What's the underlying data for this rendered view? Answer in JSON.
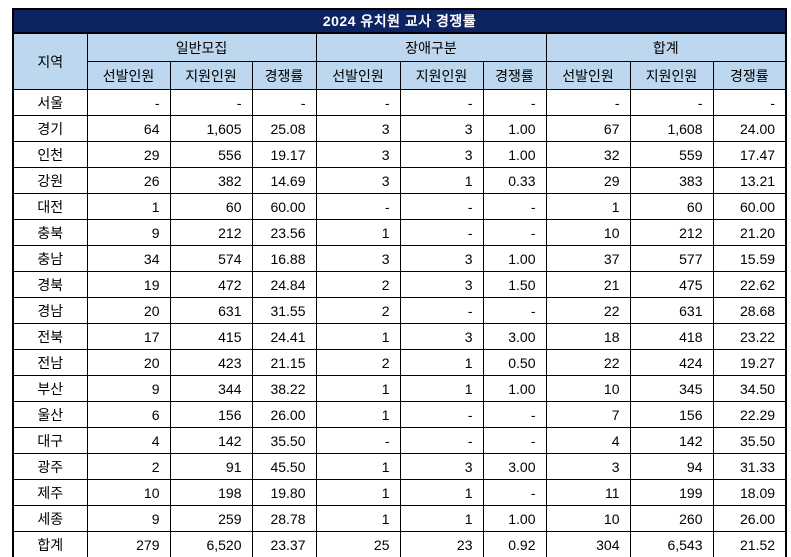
{
  "title": "2024 유치원 교사 경쟁률",
  "colors": {
    "title_bg": "#0e2361",
    "title_fg": "#ffffff",
    "header_bg": "#bdd7ee",
    "border": "#000000"
  },
  "chart_data": {
    "type": "table",
    "title": "2024 유치원 교사 경쟁률",
    "region_header": "지역",
    "column_groups": [
      {
        "label": "일반모집"
      },
      {
        "label": "장애구분"
      },
      {
        "label": "합계"
      }
    ],
    "sub_columns": [
      "선발인원",
      "지원인원",
      "경쟁률"
    ],
    "rows": [
      {
        "region": "서울",
        "values": [
          "-",
          "-",
          "-",
          "-",
          "-",
          "-",
          "-",
          "-",
          "-"
        ]
      },
      {
        "region": "경기",
        "values": [
          "64",
          "1,605",
          "25.08",
          "3",
          "3",
          "1.00",
          "67",
          "1,608",
          "24.00"
        ]
      },
      {
        "region": "인천",
        "values": [
          "29",
          "556",
          "19.17",
          "3",
          "3",
          "1.00",
          "32",
          "559",
          "17.47"
        ]
      },
      {
        "region": "강원",
        "values": [
          "26",
          "382",
          "14.69",
          "3",
          "1",
          "0.33",
          "29",
          "383",
          "13.21"
        ]
      },
      {
        "region": "대전",
        "values": [
          "1",
          "60",
          "60.00",
          "-",
          "-",
          "-",
          "1",
          "60",
          "60.00"
        ]
      },
      {
        "region": "충북",
        "values": [
          "9",
          "212",
          "23.56",
          "1",
          "-",
          "-",
          "10",
          "212",
          "21.20"
        ]
      },
      {
        "region": "충남",
        "values": [
          "34",
          "574",
          "16.88",
          "3",
          "3",
          "1.00",
          "37",
          "577",
          "15.59"
        ]
      },
      {
        "region": "경북",
        "values": [
          "19",
          "472",
          "24.84",
          "2",
          "3",
          "1.50",
          "21",
          "475",
          "22.62"
        ]
      },
      {
        "region": "경남",
        "values": [
          "20",
          "631",
          "31.55",
          "2",
          "-",
          "-",
          "22",
          "631",
          "28.68"
        ]
      },
      {
        "region": "전북",
        "values": [
          "17",
          "415",
          "24.41",
          "1",
          "3",
          "3.00",
          "18",
          "418",
          "23.22"
        ]
      },
      {
        "region": "전남",
        "values": [
          "20",
          "423",
          "21.15",
          "2",
          "1",
          "0.50",
          "22",
          "424",
          "19.27"
        ]
      },
      {
        "region": "부산",
        "values": [
          "9",
          "344",
          "38.22",
          "1",
          "1",
          "1.00",
          "10",
          "345",
          "34.50"
        ]
      },
      {
        "region": "울산",
        "values": [
          "6",
          "156",
          "26.00",
          "1",
          "-",
          "-",
          "7",
          "156",
          "22.29"
        ]
      },
      {
        "region": "대구",
        "values": [
          "4",
          "142",
          "35.50",
          "-",
          "-",
          "-",
          "4",
          "142",
          "35.50"
        ]
      },
      {
        "region": "광주",
        "values": [
          "2",
          "91",
          "45.50",
          "1",
          "3",
          "3.00",
          "3",
          "94",
          "31.33"
        ]
      },
      {
        "region": "제주",
        "values": [
          "10",
          "198",
          "19.80",
          "1",
          "1",
          "-",
          "11",
          "199",
          "18.09"
        ]
      },
      {
        "region": "세종",
        "values": [
          "9",
          "259",
          "28.78",
          "1",
          "1",
          "1.00",
          "10",
          "260",
          "26.00"
        ]
      },
      {
        "region": "합계",
        "values": [
          "279",
          "6,520",
          "23.37",
          "25",
          "23",
          "0.92",
          "304",
          "6,543",
          "21.52"
        ]
      }
    ]
  }
}
